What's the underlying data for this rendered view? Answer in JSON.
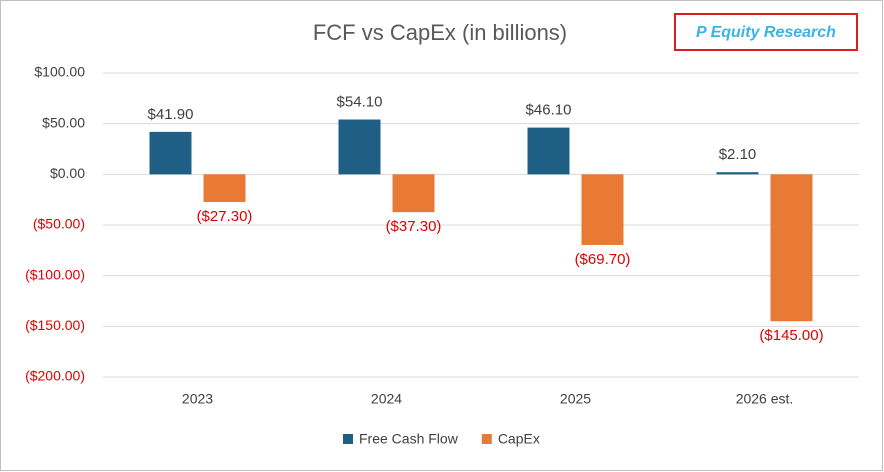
{
  "chart_data": {
    "type": "bar",
    "title": "FCF vs CapEx (in billions)",
    "badge": "P Equity Research",
    "categories": [
      "2023",
      "2024",
      "2025",
      "2026 est."
    ],
    "series": [
      {
        "name": "Free Cash Flow",
        "color": "#1f5f86",
        "values": [
          41.9,
          54.1,
          46.1,
          2.1
        ],
        "value_labels": [
          "$41.90",
          "$54.10",
          "$46.10",
          "$2.10"
        ]
      },
      {
        "name": "CapEx",
        "color": "#e97a36",
        "values": [
          -27.3,
          -37.3,
          -69.7,
          -145
        ],
        "value_labels": [
          "($27.30)",
          "($37.30)",
          "($69.70)",
          "($145.00)"
        ]
      }
    ],
    "ylim": [
      -200,
      100
    ],
    "yticks": [
      {
        "value": 100,
        "label": "$100.00"
      },
      {
        "value": 50,
        "label": "$50.00"
      },
      {
        "value": 0,
        "label": "$0.00"
      },
      {
        "value": -50,
        "label": "($50.00)"
      },
      {
        "value": -100,
        "label": "($100.00)"
      },
      {
        "value": -150,
        "label": "($150.00)"
      },
      {
        "value": -200,
        "label": "($200.00)"
      }
    ],
    "grid": true,
    "negative_color": "#e00000",
    "legend": "bottom"
  }
}
